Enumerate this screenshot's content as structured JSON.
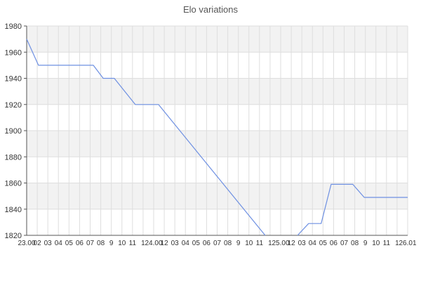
{
  "chart_data": {
    "type": "line",
    "title": "Elo variations",
    "xlabel": "",
    "ylabel": "",
    "ylim": [
      1820,
      1980
    ],
    "y_ticks": [
      1980,
      1960,
      1940,
      1920,
      1900,
      1880,
      1860,
      1840,
      1820
    ],
    "x_tick_labels": [
      "23.00",
      "02",
      "03",
      "04",
      "05",
      "06",
      "07",
      "08",
      "9",
      "10",
      "11",
      "1",
      "24.00",
      "12",
      "03",
      "04",
      "05",
      "06",
      "07",
      "08",
      "9",
      "10",
      "11",
      "1",
      "25.00",
      "12",
      "03",
      "04",
      "05",
      "06",
      "07",
      "08",
      "9",
      "10",
      "11",
      "1",
      "26.01"
    ],
    "grid": true,
    "legend": "none",
    "band_fill_alternating": true,
    "colors": {
      "line": "#6e90e2",
      "band": "#f2f2f2",
      "grid": "#dedede",
      "axis": "#555555",
      "tick_text": "#333333",
      "title_text": "#555555",
      "background": "#ffffff"
    },
    "series": [
      {
        "name": "Elo",
        "segments": [
          {
            "points": [
              [
                0.0,
                1970
              ],
              [
                0.031,
                1950
              ],
              [
                0.175,
                1950
              ],
              [
                0.201,
                1940
              ],
              [
                0.23,
                1940
              ],
              [
                0.285,
                1920
              ],
              [
                0.346,
                1920
              ],
              [
                0.626,
                1820
              ]
            ]
          },
          {
            "points": [
              [
                0.711,
                1820
              ],
              [
                0.74,
                1829
              ],
              [
                0.773,
                1829
              ],
              [
                0.799,
                1859
              ],
              [
                0.856,
                1859
              ],
              [
                0.886,
                1849
              ],
              [
                1.0,
                1849
              ]
            ]
          }
        ]
      }
    ]
  }
}
